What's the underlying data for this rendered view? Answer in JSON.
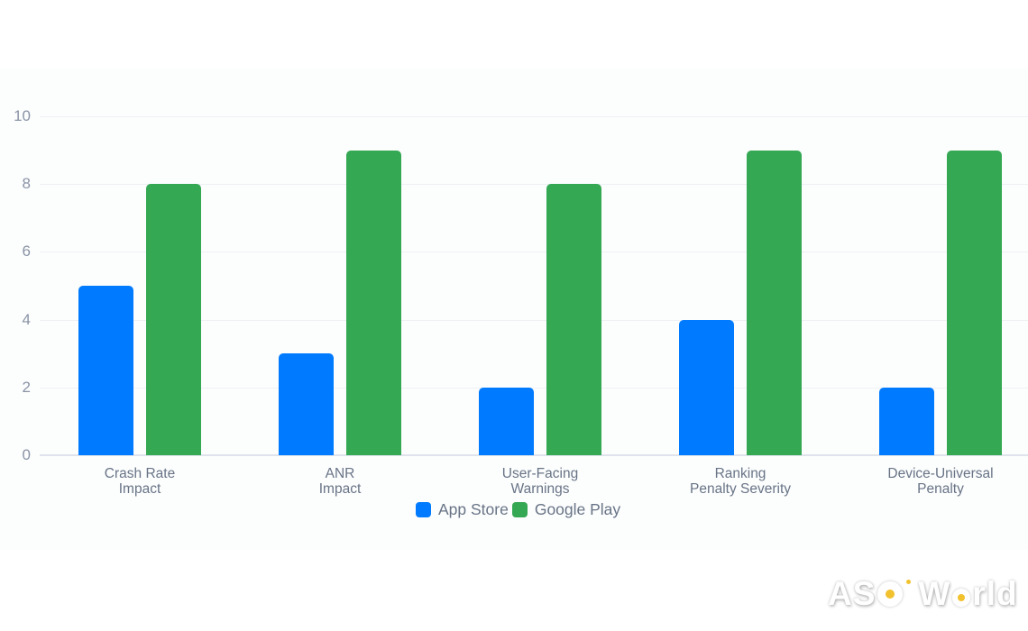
{
  "chart_data": {
    "type": "bar",
    "title": "",
    "xlabel": "",
    "ylabel": "",
    "ylim": [
      0,
      10
    ],
    "yticks": [
      0,
      2,
      4,
      6,
      8,
      10
    ],
    "grid": true,
    "legend_position": "bottom",
    "categories": [
      "Crash Rate\nImpact",
      "ANR\nImpact",
      "User-Facing\nWarnings",
      "Ranking\nPenalty Severity",
      "Device-Universal\nPenalty"
    ],
    "series": [
      {
        "name": "App Store",
        "color": "#007bff",
        "values": [
          5,
          3,
          2,
          4,
          2
        ]
      },
      {
        "name": "Google Play",
        "color": "#34a853",
        "values": [
          8,
          9,
          8,
          9,
          9
        ]
      }
    ]
  },
  "legend": {
    "items": [
      {
        "label": "App Store",
        "color": "#007bff"
      },
      {
        "label": "Google Play",
        "color": "#34a853"
      }
    ]
  },
  "yaxis": {
    "ticks": [
      "0",
      "2",
      "4",
      "6",
      "8",
      "10"
    ]
  },
  "watermark": {
    "text_left": "AS",
    "text_right": "rld",
    "brand": "ASO World",
    "accent_color": "#f2c12e"
  }
}
